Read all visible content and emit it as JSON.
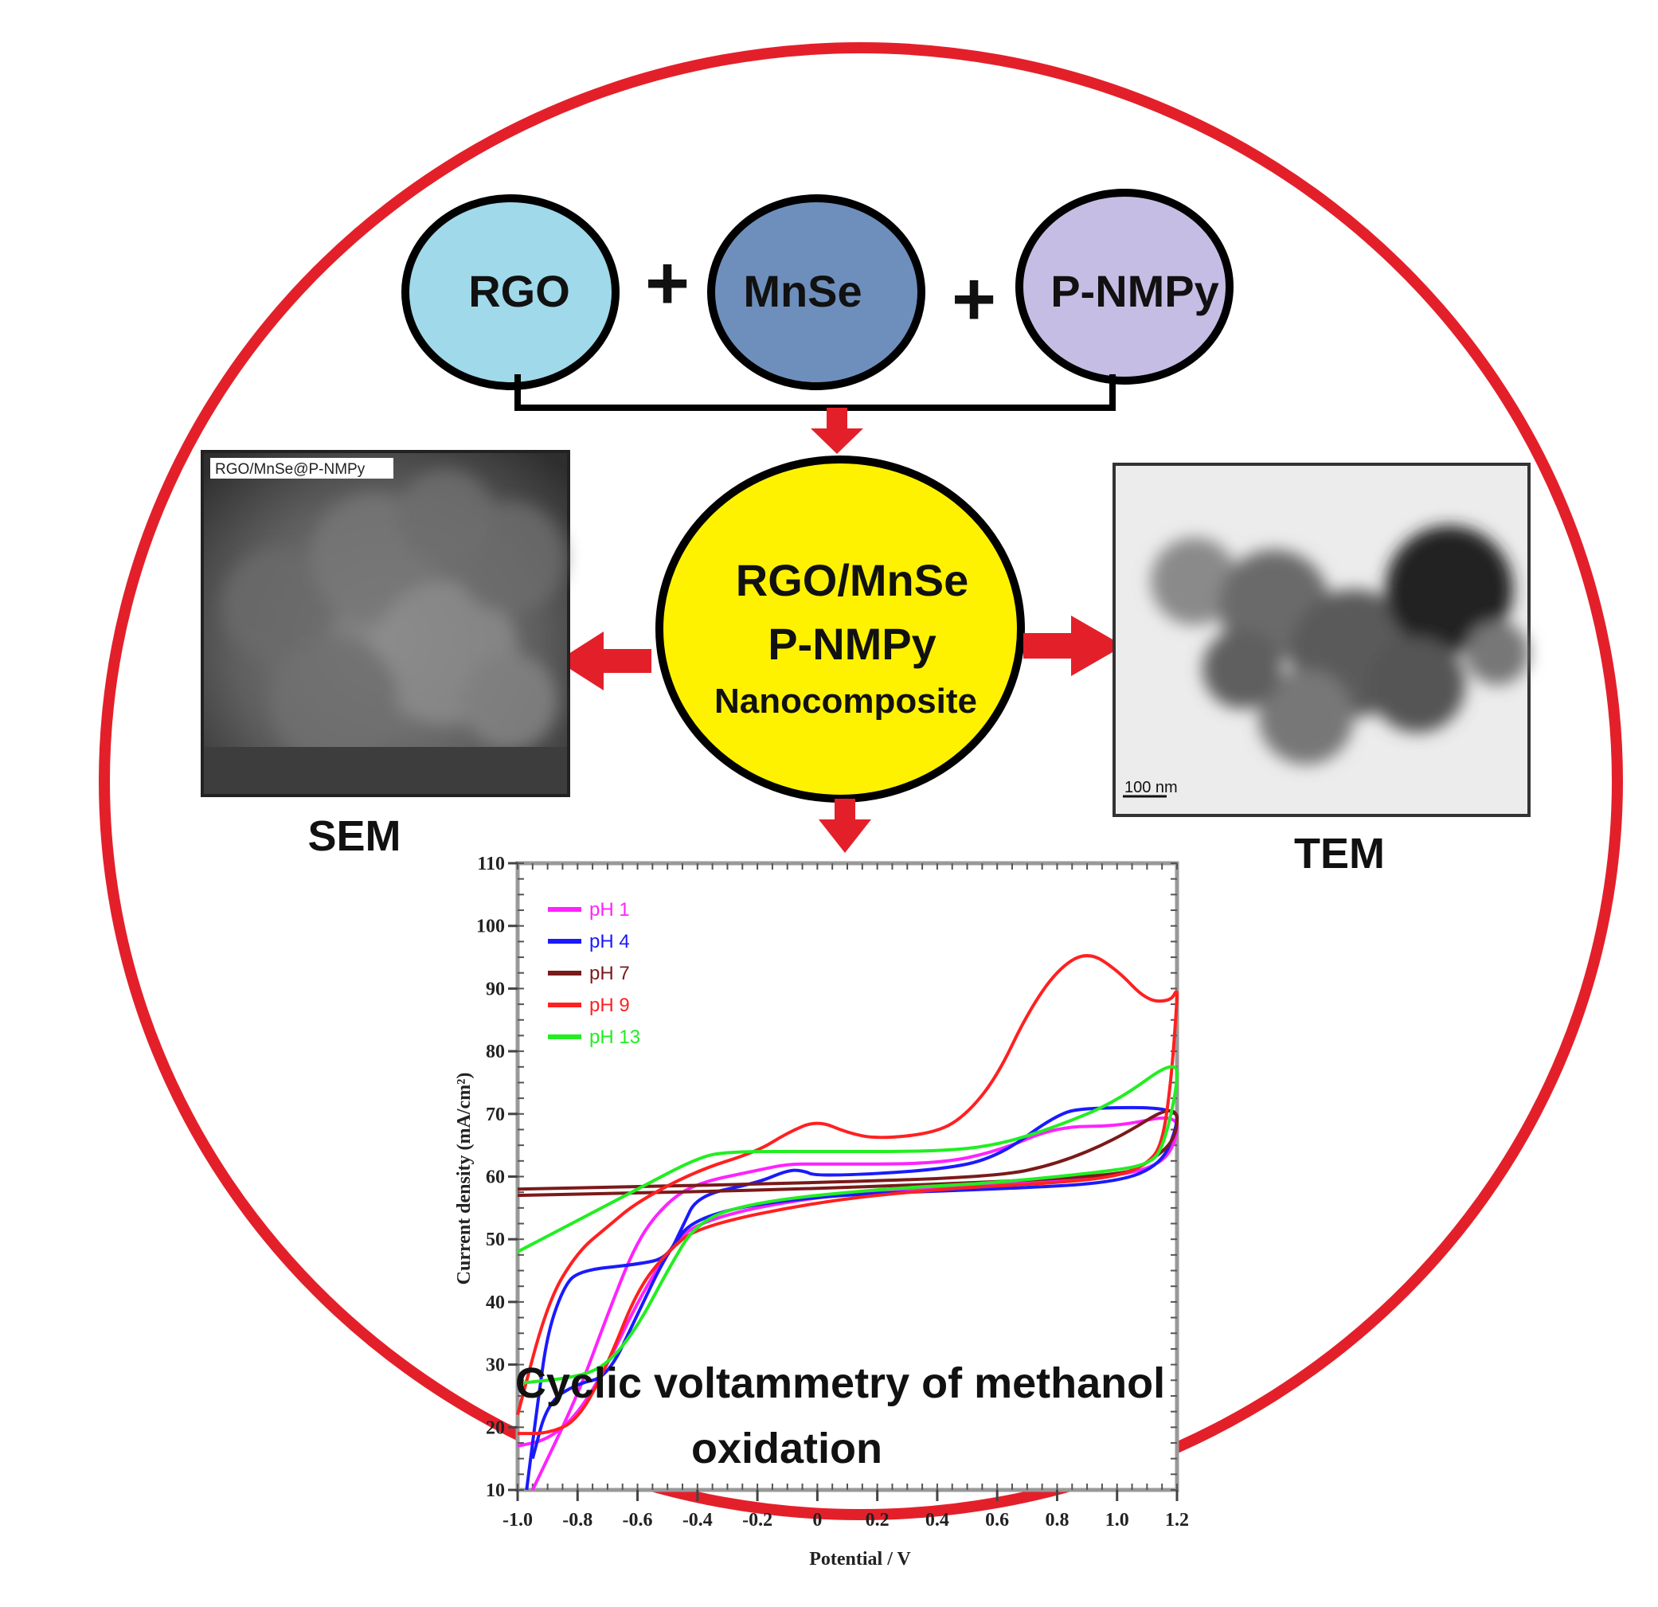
{
  "components": [
    {
      "label": "RGO",
      "color": "#9fd9ea"
    },
    {
      "label": "MnSe",
      "color": "#6e8fbc"
    },
    {
      "label": "P-NMPy",
      "color": "#c6bde4"
    }
  ],
  "plus_sign": "+",
  "product": {
    "line1": "RGO/MnSe",
    "line2": "P-NMPy",
    "line3": "Nanocomposite",
    "color": "#fff200"
  },
  "sem": {
    "caption": "SEM",
    "image_label": "RGO/MnSe@P-NMPy"
  },
  "tem": {
    "caption": "TEM",
    "scale_bar": "100  nm"
  },
  "caption": {
    "line1": "Cyclic voltammetry of methanol",
    "line2": "oxidation"
  },
  "colors": {
    "frame": "#e3202a",
    "arrow": "#e3202a"
  },
  "chart_data": {
    "type": "line",
    "xlabel": "Potential / V",
    "ylabel": "Current density (mA/cm²)",
    "xlim": [
      -1.0,
      1.2
    ],
    "ylim": [
      10,
      110
    ],
    "xticks": [
      "-1.0",
      "-0.8",
      "-0.6",
      "-0.4",
      "-0.2",
      "0",
      "0.2",
      "0.4",
      "0.6",
      "0.8",
      "1.0",
      "1.2"
    ],
    "yticks": [
      "10",
      "20",
      "30",
      "40",
      "50",
      "60",
      "70",
      "80",
      "90",
      "100",
      "110"
    ],
    "legend_position": "top-left",
    "series": [
      {
        "name": "pH 1",
        "color": "#ff22ff",
        "points": [
          [
            -0.95,
            10
          ],
          [
            -0.8,
            25
          ],
          [
            -0.7,
            38
          ],
          [
            -0.6,
            50
          ],
          [
            -0.5,
            56
          ],
          [
            -0.4,
            59
          ],
          [
            -0.2,
            61
          ],
          [
            -0.1,
            62
          ],
          [
            0,
            62
          ],
          [
            0.4,
            62
          ],
          [
            0.6,
            64
          ],
          [
            0.8,
            68
          ],
          [
            1.0,
            68
          ],
          [
            1.2,
            70
          ],
          [
            1.2,
            66
          ],
          [
            1.15,
            62
          ],
          [
            1.0,
            60
          ],
          [
            0.6,
            59
          ],
          [
            0,
            57
          ],
          [
            -0.4,
            53
          ],
          [
            -0.5,
            48
          ],
          [
            -0.6,
            40
          ],
          [
            -0.7,
            30
          ],
          [
            -0.8,
            22
          ],
          [
            -0.9,
            18
          ],
          [
            -1.0,
            17
          ]
        ]
      },
      {
        "name": "pH 4",
        "color": "#1a1aff",
        "points": [
          [
            -0.97,
            10
          ],
          [
            -0.93,
            25
          ],
          [
            -0.9,
            35
          ],
          [
            -0.85,
            42
          ],
          [
            -0.8,
            45
          ],
          [
            -0.6,
            46
          ],
          [
            -0.5,
            47
          ],
          [
            -0.45,
            52
          ],
          [
            -0.4,
            57
          ],
          [
            -0.2,
            59
          ],
          [
            -0.1,
            61
          ],
          [
            -0.05,
            61
          ],
          [
            0,
            60
          ],
          [
            0.4,
            61
          ],
          [
            0.6,
            63
          ],
          [
            0.8,
            70
          ],
          [
            0.9,
            71
          ],
          [
            1.2,
            71
          ],
          [
            1.2,
            68
          ],
          [
            1.15,
            62
          ],
          [
            1.0,
            59
          ],
          [
            0.6,
            58
          ],
          [
            0,
            57
          ],
          [
            -0.4,
            54
          ],
          [
            -0.5,
            48
          ],
          [
            -0.6,
            38
          ],
          [
            -0.7,
            28
          ],
          [
            -0.8,
            27
          ],
          [
            -0.9,
            24
          ],
          [
            -0.95,
            15
          ]
        ]
      },
      {
        "name": "pH 7",
        "color": "#7a1a1a",
        "points": [
          [
            -1.0,
            58
          ],
          [
            0,
            59
          ],
          [
            0.6,
            60
          ],
          [
            0.8,
            62
          ],
          [
            1.0,
            66
          ],
          [
            1.2,
            72
          ],
          [
            1.2,
            66
          ],
          [
            1.1,
            62
          ],
          [
            1.0,
            60
          ],
          [
            0,
            58
          ],
          [
            -1.0,
            57
          ]
        ]
      },
      {
        "name": "pH 9",
        "color": "#ff2020",
        "points": [
          [
            -1.0,
            22
          ],
          [
            -0.9,
            40
          ],
          [
            -0.8,
            48
          ],
          [
            -0.7,
            52
          ],
          [
            -0.6,
            56
          ],
          [
            -0.4,
            61
          ],
          [
            -0.2,
            64
          ],
          [
            -0.1,
            67
          ],
          [
            0,
            69
          ],
          [
            0.1,
            67
          ],
          [
            0.2,
            66
          ],
          [
            0.4,
            67
          ],
          [
            0.5,
            70
          ],
          [
            0.6,
            76
          ],
          [
            0.7,
            86
          ],
          [
            0.8,
            93
          ],
          [
            0.9,
            96
          ],
          [
            1.0,
            93
          ],
          [
            1.1,
            88
          ],
          [
            1.18,
            88
          ],
          [
            1.2,
            90
          ],
          [
            1.2,
            88
          ],
          [
            1.18,
            75
          ],
          [
            1.15,
            65
          ],
          [
            1.1,
            62
          ],
          [
            1.0,
            60
          ],
          [
            0.8,
            59
          ],
          [
            0.4,
            58
          ],
          [
            0,
            56
          ],
          [
            -0.4,
            52
          ],
          [
            -0.5,
            48
          ],
          [
            -0.6,
            42
          ],
          [
            -0.7,
            30
          ],
          [
            -0.8,
            21
          ],
          [
            -0.9,
            19
          ],
          [
            -1.0,
            19
          ]
        ]
      },
      {
        "name": "pH 13",
        "color": "#22ee22",
        "points": [
          [
            -1.0,
            48
          ],
          [
            -0.8,
            53
          ],
          [
            -0.6,
            58
          ],
          [
            -0.4,
            63
          ],
          [
            -0.3,
            64
          ],
          [
            0,
            64
          ],
          [
            0.4,
            64
          ],
          [
            0.6,
            65
          ],
          [
            0.8,
            68
          ],
          [
            1.0,
            72
          ],
          [
            1.2,
            79
          ],
          [
            1.2,
            74
          ],
          [
            1.15,
            64
          ],
          [
            1.1,
            62
          ],
          [
            1.0,
            61
          ],
          [
            0.6,
            59
          ],
          [
            0.2,
            58
          ],
          [
            -0.2,
            56
          ],
          [
            -0.4,
            53
          ],
          [
            -0.5,
            45
          ],
          [
            -0.6,
            36
          ],
          [
            -0.7,
            30
          ],
          [
            -0.8,
            28
          ],
          [
            -1.0,
            27
          ]
        ]
      }
    ]
  }
}
